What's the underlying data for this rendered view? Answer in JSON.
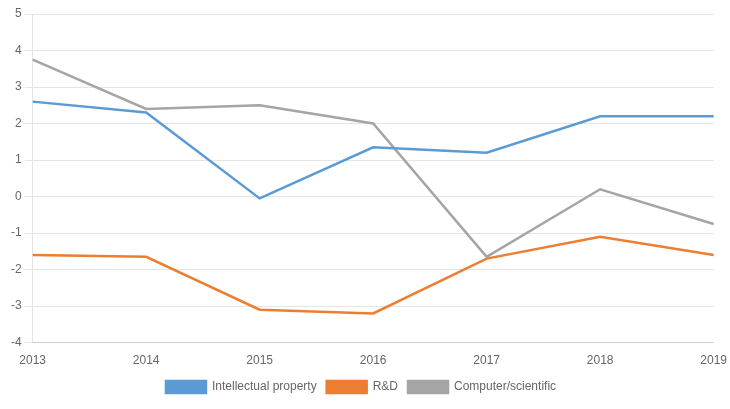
{
  "chart_data": {
    "type": "line",
    "categories": [
      "2013",
      "2014",
      "2015",
      "2016",
      "2017",
      "2018",
      "2019"
    ],
    "series": [
      {
        "name": "Intellectual property",
        "color": "#5b9bd5",
        "values": [
          2.6,
          2.3,
          -0.05,
          1.35,
          1.2,
          2.2,
          2.2
        ]
      },
      {
        "name": "R&D",
        "color": "#ed7d31",
        "values": [
          -1.6,
          -1.65,
          -3.1,
          -3.2,
          -1.7,
          -1.1,
          -1.6
        ]
      },
      {
        "name": "Computer/scientific",
        "color": "#a5a5a5",
        "values": [
          3.75,
          2.4,
          2.5,
          2.0,
          -1.65,
          0.2,
          -0.75
        ]
      }
    ],
    "ylim": [
      -4,
      5
    ],
    "yticks": [
      -4,
      -3,
      -2,
      -1,
      0,
      1,
      2,
      3,
      4,
      5
    ],
    "grid": true,
    "legend": "bottom"
  }
}
